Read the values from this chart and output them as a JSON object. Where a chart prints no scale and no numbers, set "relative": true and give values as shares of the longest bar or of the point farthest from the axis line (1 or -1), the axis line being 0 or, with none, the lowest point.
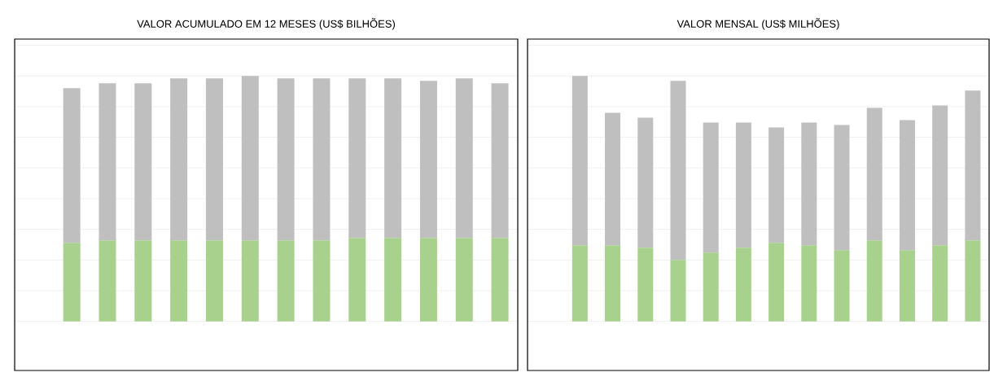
{
  "chart_data": [
    {
      "type": "bar",
      "title": "VALOR ACUMULADO EM 12 MESES (US$ BILHÕES)",
      "stacked": true,
      "relative": true,
      "grid": "y",
      "categories": [
        null,
        null,
        null,
        null,
        null,
        null,
        null,
        null,
        null,
        null,
        null,
        null,
        null
      ],
      "series": [
        {
          "color": "#a9d18e",
          "values": [
            0.32,
            0.33,
            0.33,
            0.33,
            0.33,
            0.33,
            0.33,
            0.33,
            0.34,
            0.34,
            0.34,
            0.34,
            0.34
          ]
        },
        {
          "color": "#bfbfbf",
          "values": [
            0.63,
            0.64,
            0.64,
            0.66,
            0.66,
            0.67,
            0.66,
            0.66,
            0.65,
            0.65,
            0.64,
            0.65,
            0.63
          ]
        }
      ]
    },
    {
      "type": "bar",
      "title": "VALOR MENSAL (US$ MILHÕES)",
      "stacked": true,
      "relative": true,
      "grid": "y",
      "categories": [
        null,
        null,
        null,
        null,
        null,
        null,
        null,
        null,
        null,
        null,
        null,
        null,
        null
      ],
      "series": [
        {
          "color": "#a9d18e",
          "values": [
            0.31,
            0.31,
            0.3,
            0.25,
            0.28,
            0.3,
            0.32,
            0.31,
            0.29,
            0.33,
            0.29,
            0.31,
            0.33
          ]
        },
        {
          "color": "#bfbfbf",
          "values": [
            0.69,
            0.54,
            0.53,
            0.73,
            0.53,
            0.51,
            0.47,
            0.5,
            0.51,
            0.54,
            0.53,
            0.57,
            0.61
          ]
        }
      ]
    }
  ]
}
